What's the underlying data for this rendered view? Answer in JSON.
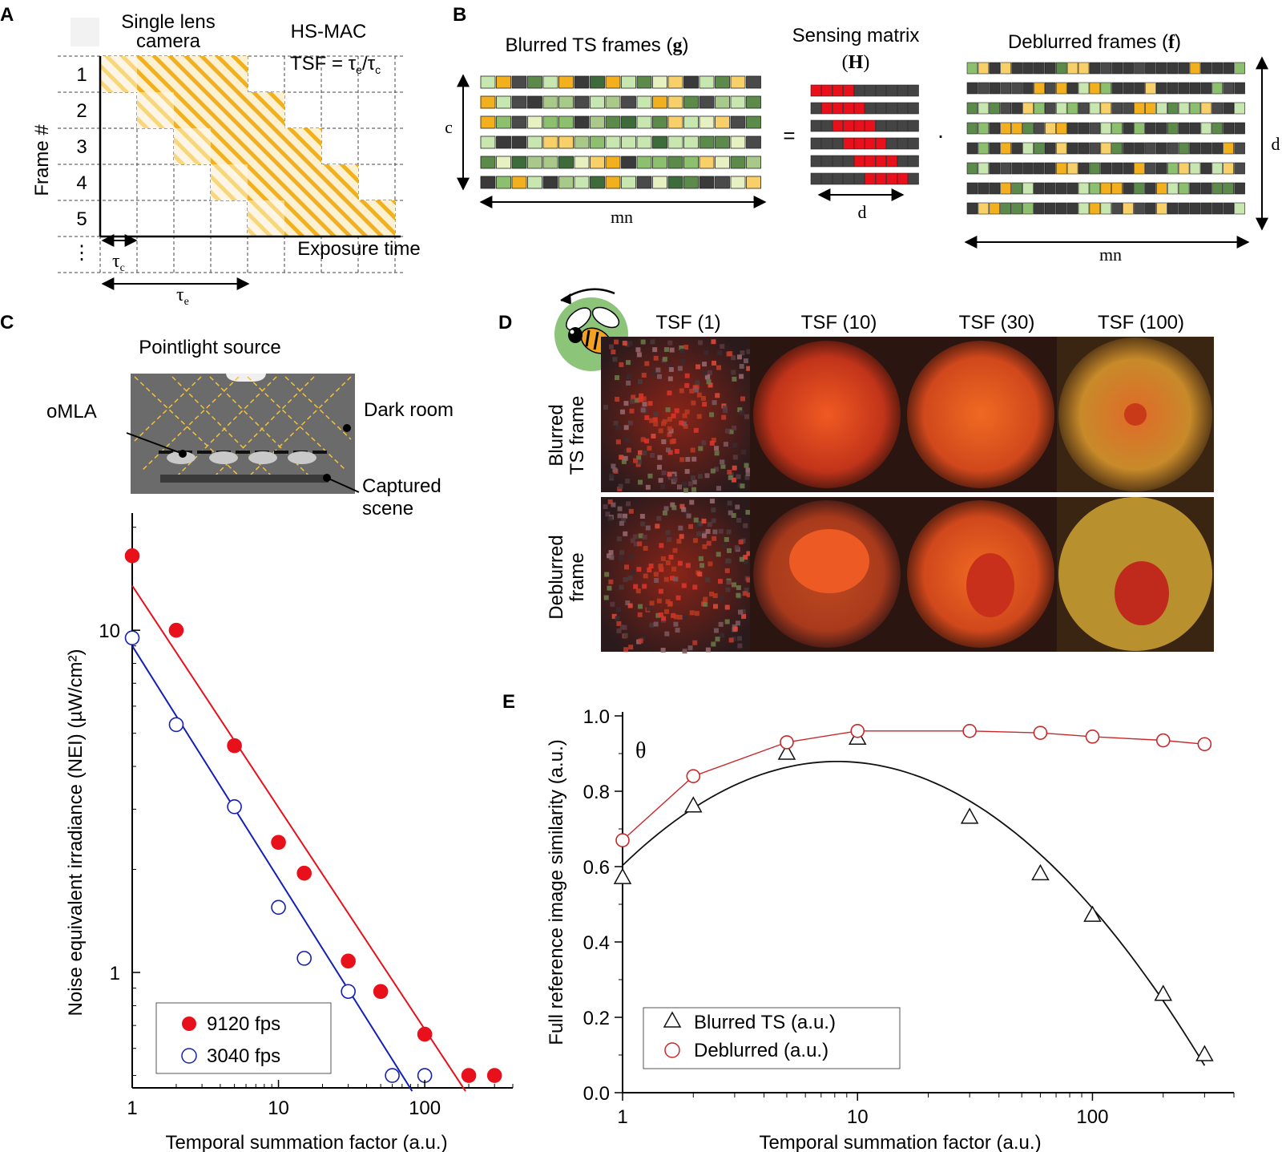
{
  "figure": {
    "panel_a": {
      "letter": "A",
      "camera_label_line1": "Single lens",
      "camera_label_line2": "camera",
      "hsmac_label": "HS-MAC",
      "tsf_formula": "TSF = τe/τc",
      "tsf_formula_prefix": "TSF = τ",
      "tsf_formula_sub_e": "e",
      "tsf_formula_mid": "/τ",
      "tsf_formula_sub_c": "c",
      "frame_numbers": [
        "1",
        "2",
        "3",
        "4",
        "5"
      ],
      "ellipsis": "⋮",
      "ylabel": "Frame #",
      "xlabel": "Exposure time",
      "tau_c": "τc",
      "tau_c_base": "τ",
      "tau_c_sub": "c",
      "tau_e": "τe",
      "tau_e_base": "τ",
      "tau_e_sub": "e",
      "stripe_color": "#f2b01e"
    },
    "panel_b": {
      "letter": "B",
      "blurred_title": "Blurred TS frames (g)",
      "blurred_title_text": "Blurred TS frames (",
      "blurred_title_symbol": "g",
      "blurred_title_close": ")",
      "sensing_title_line1": "Sensing matrix",
      "sensing_title_line2": "(H)",
      "sensing_title_symbol": "H",
      "deblurred_title": "Deblurred frames (f)",
      "deblurred_title_text": "Deblurred frames (",
      "deblurred_title_symbol": "f",
      "deblurred_title_close": ")",
      "label_c": "c",
      "label_mn_left": "mn",
      "label_d_bottom": "d",
      "label_d_right": "d",
      "label_mn_right": "mn",
      "equals": "=",
      "dot": "·",
      "sensing_color": "#e8101a"
    },
    "panel_c": {
      "letter": "C",
      "source_label": "Pointlight source",
      "omla_label": "oMLA",
      "darkroom_label": "Dark room",
      "captured_line1": "Captured",
      "captured_line2": "scene",
      "chart_data": {
        "type": "scatter",
        "xlabel": "Temporal summation factor (a.u.)",
        "ylabel": "Noise equivalent irradiance (NEI) (µW/cm²)",
        "xscale": "log",
        "yscale": "log",
        "xlim": [
          1,
          400
        ],
        "ylim": [
          0.46,
          22
        ],
        "x_ticks": [
          "1",
          "10",
          "100"
        ],
        "y_ticks": [
          "1",
          "10"
        ],
        "legend_placement": "bottom-left",
        "series": [
          {
            "name": "9120 fps",
            "marker": "filled-circle",
            "color": "#e8101a",
            "x": [
              1,
              2,
              5,
              10,
              15,
              30,
              50,
              100,
              200,
              300
            ],
            "y": [
              16.5,
              10.0,
              4.6,
              2.4,
              1.95,
              1.08,
              0.88,
              0.66,
              0.5,
              0.5
            ],
            "fit": {
              "x": [
                1,
                190
              ],
              "y": [
                13.5,
                0.45
              ]
            }
          },
          {
            "name": "3040 fps",
            "marker": "open-circle",
            "color": "#1420b4",
            "x": [
              1,
              2,
              5,
              10,
              15,
              30,
              60,
              100
            ],
            "y": [
              9.5,
              5.3,
              3.05,
              1.55,
              1.1,
              0.88,
              0.5,
              0.5
            ],
            "fit": {
              "x": [
                1,
                82
              ],
              "y": [
                9.0,
                0.45
              ]
            }
          }
        ]
      }
    },
    "panel_d": {
      "letter": "D",
      "columns": [
        "TSF (1)",
        "TSF (10)",
        "TSF (30)",
        "TSF (100)"
      ],
      "row1_line1": "Blurred",
      "row1_line2": "TS frame",
      "row2_line1": "Deblurred",
      "row2_line2": "frame",
      "icon": "bee-icon"
    },
    "panel_e": {
      "letter": "E",
      "theta": "θ",
      "chart_data": {
        "type": "line",
        "xlabel": "Temporal summation factor (a.u.)",
        "ylabel": "Full reference image similarity (a.u.)",
        "xscale": "log",
        "xlim": [
          1,
          400
        ],
        "ylim": [
          0.0,
          1.0
        ],
        "x_ticks": [
          "1",
          "10",
          "100"
        ],
        "y_ticks": [
          "0.0",
          "0.2",
          "0.4",
          "0.6",
          "0.8",
          "1.0"
        ],
        "legend_placement": "bottom-left",
        "series": [
          {
            "name": "Blurred TS (a.u.)",
            "marker": "open-triangle",
            "color": "#111111",
            "x": [
              1,
              2,
              5,
              10,
              30,
              60,
              100,
              200,
              300
            ],
            "y": [
              0.57,
              0.76,
              0.9,
              0.94,
              0.73,
              0.58,
              0.47,
              0.26,
              0.1
            ]
          },
          {
            "name": "Deblurred (a.u.)",
            "marker": "open-circle",
            "color": "#c8282a",
            "x": [
              1,
              2,
              5,
              10,
              30,
              60,
              100,
              200,
              300
            ],
            "y": [
              0.67,
              0.84,
              0.93,
              0.96,
              0.96,
              0.955,
              0.945,
              0.935,
              0.925
            ]
          }
        ]
      }
    }
  }
}
